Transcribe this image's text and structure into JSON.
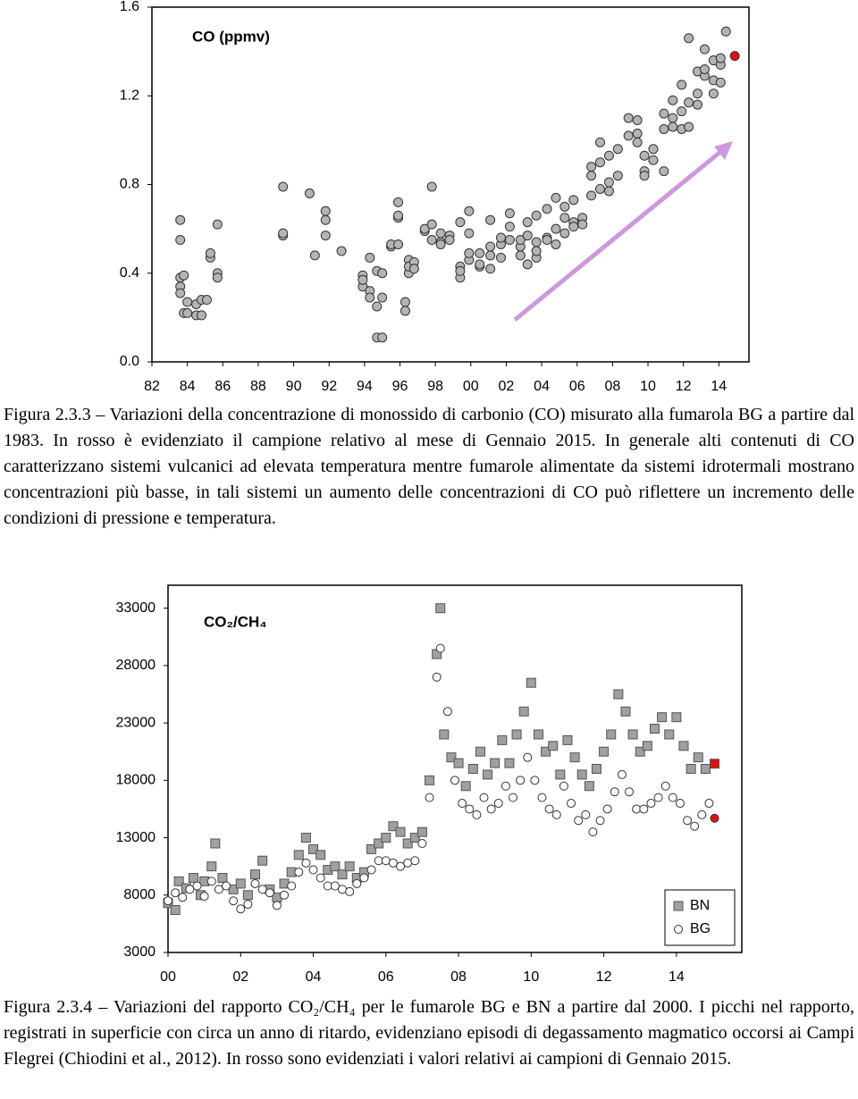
{
  "chart_data": [
    {
      "type": "scatter",
      "title": "CO (ppmv)",
      "xlim": [
        1982,
        2015.7
      ],
      "ylim": [
        0,
        1.6
      ],
      "xticks": [
        {
          "value": 1982,
          "label": "82"
        },
        {
          "value": 1984,
          "label": "84"
        },
        {
          "value": 1986,
          "label": "86"
        },
        {
          "value": 1988,
          "label": "88"
        },
        {
          "value": 1990,
          "label": "90"
        },
        {
          "value": 1992,
          "label": "92"
        },
        {
          "value": 1994,
          "label": "94"
        },
        {
          "value": 1996,
          "label": "96"
        },
        {
          "value": 1998,
          "label": "98"
        },
        {
          "value": 2000,
          "label": "00"
        },
        {
          "value": 2002,
          "label": "02"
        },
        {
          "value": 2004,
          "label": "04"
        },
        {
          "value": 2006,
          "label": "06"
        },
        {
          "value": 2008,
          "label": "08"
        },
        {
          "value": 2010,
          "label": "10"
        },
        {
          "value": 2012,
          "label": "12"
        },
        {
          "value": 2014,
          "label": "14"
        }
      ],
      "yticks": [
        {
          "value": 0,
          "label": "0.0"
        },
        0.4,
        0.8,
        1.2,
        1.6
      ],
      "series": [
        {
          "color": "#b4b4b4",
          "marker": "circle",
          "x": [
            1983.6,
            1983.6,
            1983.6,
            1983.6,
            1983.6,
            1983.8,
            1983.8,
            1984.0,
            1984.0,
            1984.5,
            1984.5,
            1984.8,
            1984.8,
            1985.1,
            1985.3,
            1985.3,
            1985.7,
            1985.7,
            1985.7,
            1989.4,
            1989.4,
            1989.4,
            1990.9,
            1991.2,
            1991.8,
            1991.8,
            1991.8,
            1992.7,
            1993.9,
            1993.9,
            1993.9,
            1993.9,
            1994.3,
            1994.3,
            1994.3,
            1994.7,
            1994.7,
            1994.7,
            1995.0,
            1995.0,
            1995.0,
            1995.5,
            1995.5,
            1995.9,
            1995.9,
            1995.9,
            1995.9,
            1996.3,
            1996.3,
            1996.5,
            1996.5,
            1996.5,
            1996.8,
            1996.8,
            1997.4,
            1997.4,
            1997.8,
            1997.8,
            1997.8,
            1998.3,
            1998.3,
            1998.3,
            1998.8,
            1998.8,
            1999.4,
            1999.4,
            1999.4,
            1999.4,
            1999.9,
            1999.9,
            1999.9,
            1999.9,
            2000.5,
            2000.5,
            2000.5,
            2001.1,
            2001.1,
            2001.1,
            2001.1,
            2001.7,
            2001.7,
            2001.7,
            2002.2,
            2002.2,
            2002.2,
            2002.8,
            2002.8,
            2002.8,
            2003.2,
            2003.2,
            2003.2,
            2003.7,
            2003.7,
            2003.7,
            2003.7,
            2004.3,
            2004.3,
            2004.3,
            2004.8,
            2004.8,
            2004.8,
            2005.3,
            2005.3,
            2005.3,
            2005.8,
            2005.8,
            2005.8,
            2006.3,
            2006.3,
            2006.8,
            2006.8,
            2006.8,
            2007.3,
            2007.3,
            2007.3,
            2007.8,
            2007.8,
            2007.8,
            2008.3,
            2008.3,
            2008.9,
            2008.9,
            2009.4,
            2009.4,
            2009.4,
            2009.8,
            2009.8,
            2009.8,
            2010.3,
            2010.3,
            2010.9,
            2010.9,
            2010.9,
            2011.4,
            2011.4,
            2011.4,
            2011.9,
            2011.9,
            2011.9,
            2012.3,
            2012.3,
            2012.3,
            2012.8,
            2012.8,
            2012.8,
            2013.2,
            2013.2,
            2013.2,
            2013.7,
            2013.7,
            2013.7,
            2014.1,
            2014.1,
            2014.1,
            2014.4
          ],
          "values": [
            0.64,
            0.55,
            0.38,
            0.34,
            0.31,
            0.39,
            0.22,
            0.22,
            0.27,
            0.26,
            0.21,
            0.21,
            0.28,
            0.28,
            0.47,
            0.49,
            0.62,
            0.4,
            0.38,
            0.79,
            0.57,
            0.58,
            0.76,
            0.48,
            0.57,
            0.64,
            0.68,
            0.5,
            0.34,
            0.39,
            0.34,
            0.37,
            0.47,
            0.32,
            0.29,
            0.41,
            0.25,
            0.11,
            0.4,
            0.11,
            0.29,
            0.52,
            0.53,
            0.53,
            0.65,
            0.72,
            0.66,
            0.27,
            0.23,
            0.46,
            0.4,
            0.43,
            0.45,
            0.42,
            0.59,
            0.6,
            0.62,
            0.79,
            0.55,
            0.54,
            0.58,
            0.53,
            0.57,
            0.55,
            0.43,
            0.38,
            0.63,
            0.41,
            0.68,
            0.58,
            0.46,
            0.49,
            0.43,
            0.49,
            0.44,
            0.48,
            0.52,
            0.42,
            0.64,
            0.53,
            0.56,
            0.47,
            0.67,
            0.61,
            0.55,
            0.52,
            0.55,
            0.48,
            0.63,
            0.57,
            0.44,
            0.66,
            0.54,
            0.47,
            0.5,
            0.69,
            0.56,
            0.55,
            0.74,
            0.6,
            0.53,
            0.7,
            0.65,
            0.58,
            0.73,
            0.63,
            0.61,
            0.65,
            0.62,
            0.88,
            0.75,
            0.84,
            0.99,
            0.78,
            0.9,
            0.93,
            0.81,
            0.77,
            0.84,
            0.96,
            1.1,
            1.02,
            1.03,
            0.99,
            1.09,
            0.86,
            0.84,
            0.93,
            0.96,
            0.91,
            1.05,
            1.12,
            0.86,
            1.18,
            1.06,
            1.1,
            1.13,
            1.05,
            1.25,
            1.46,
            1.17,
            1.06,
            1.21,
            1.31,
            1.16,
            1.41,
            1.29,
            1.32,
            1.36,
            1.27,
            1.21,
            1.34,
            1.37,
            1.26,
            1.49
          ],
          "highlight": {
            "x": 2014.9,
            "value": 1.38,
            "color": "#e01010"
          }
        }
      ]
    },
    {
      "type": "scatter",
      "title": "CO₂/CH₄",
      "xlim": [
        2000,
        2015.8
      ],
      "ylim": [
        3000,
        35000
      ],
      "legend": "lower right",
      "xticks": [
        {
          "value": 2000,
          "label": "00"
        },
        {
          "value": 2002,
          "label": "02"
        },
        {
          "value": 2004,
          "label": "04"
        },
        {
          "value": 2006,
          "label": "06"
        },
        {
          "value": 2008,
          "label": "08"
        },
        {
          "value": 2010,
          "label": "10"
        },
        {
          "value": 2012,
          "label": "12"
        },
        {
          "value": 2014,
          "label": "14"
        }
      ],
      "yticks": [
        3000,
        8000,
        13000,
        18000,
        23000,
        28000,
        33000
      ],
      "series": [
        {
          "name": "BN",
          "color": "#a0a0a0",
          "marker": "square",
          "x": [
            2000.0,
            2000.2,
            2000.3,
            2000.5,
            2000.7,
            2000.9,
            2001.0,
            2001.2,
            2001.3,
            2001.5,
            2001.8,
            2002.0,
            2002.2,
            2002.4,
            2002.6,
            2002.8,
            2003.0,
            2003.2,
            2003.4,
            2003.6,
            2003.8,
            2004.0,
            2004.2,
            2004.4,
            2004.6,
            2004.8,
            2005.0,
            2005.2,
            2005.4,
            2005.6,
            2005.8,
            2006.0,
            2006.2,
            2006.4,
            2006.6,
            2006.8,
            2007.0,
            2007.2,
            2007.4,
            2007.5,
            2007.6,
            2007.8,
            2008.0,
            2008.2,
            2008.4,
            2008.6,
            2008.8,
            2009.0,
            2009.2,
            2009.4,
            2009.6,
            2009.8,
            2010.0,
            2010.2,
            2010.4,
            2010.6,
            2010.8,
            2011.0,
            2011.2,
            2011.4,
            2011.6,
            2011.8,
            2012.0,
            2012.2,
            2012.4,
            2012.6,
            2012.8,
            2013.0,
            2013.2,
            2013.4,
            2013.6,
            2013.8,
            2014.0,
            2014.2,
            2014.4,
            2014.6,
            2014.8
          ],
          "values": [
            7300,
            6700,
            9200,
            8600,
            9500,
            8000,
            9200,
            10500,
            12500,
            9500,
            8500,
            9000,
            8000,
            9800,
            11000,
            8500,
            7800,
            9000,
            10000,
            11500,
            13000,
            12000,
            11500,
            10200,
            10500,
            9800,
            10500,
            9500,
            10000,
            12000,
            12500,
            13000,
            14000,
            13500,
            12500,
            13000,
            13500,
            18000,
            29000,
            33000,
            22000,
            20000,
            19500,
            17500,
            19000,
            20500,
            18500,
            19500,
            21500,
            19500,
            22000,
            24000,
            26500,
            22000,
            20500,
            21000,
            18500,
            21500,
            20000,
            18500,
            17500,
            19000,
            20500,
            22000,
            25500,
            24000,
            22000,
            20500,
            21000,
            22500,
            23500,
            22000,
            23500,
            21000,
            19000,
            20000,
            19000
          ],
          "highlight": {
            "x": 2015.05,
            "value": 19450,
            "color": "#e01010"
          }
        },
        {
          "name": "BG",
          "color": "#ffffff",
          "marker": "circle",
          "x": [
            2000.0,
            2000.2,
            2000.4,
            2000.6,
            2000.8,
            2001.0,
            2001.2,
            2001.4,
            2001.6,
            2001.8,
            2002.0,
            2002.2,
            2002.4,
            2002.6,
            2002.8,
            2003.0,
            2003.2,
            2003.4,
            2003.6,
            2003.8,
            2004.0,
            2004.2,
            2004.4,
            2004.6,
            2004.8,
            2005.0,
            2005.2,
            2005.4,
            2005.6,
            2005.8,
            2006.0,
            2006.2,
            2006.4,
            2006.6,
            2006.8,
            2007.0,
            2007.2,
            2007.4,
            2007.5,
            2007.7,
            2007.9,
            2008.1,
            2008.3,
            2008.5,
            2008.7,
            2008.9,
            2009.1,
            2009.3,
            2009.5,
            2009.7,
            2009.9,
            2010.1,
            2010.3,
            2010.5,
            2010.7,
            2010.9,
            2011.1,
            2011.3,
            2011.5,
            2011.7,
            2011.9,
            2012.1,
            2012.3,
            2012.5,
            2012.7,
            2012.9,
            2013.1,
            2013.3,
            2013.5,
            2013.7,
            2013.9,
            2014.1,
            2014.3,
            2014.5,
            2014.7,
            2014.9
          ],
          "values": [
            7500,
            8200,
            7800,
            8500,
            8800,
            7900,
            9200,
            8500,
            8800,
            7500,
            6800,
            7200,
            9000,
            8500,
            8200,
            7100,
            8000,
            8800,
            10000,
            10800,
            10200,
            9500,
            8800,
            8800,
            8500,
            8300,
            9000,
            9500,
            10200,
            11000,
            11000,
            10800,
            10500,
            10800,
            11000,
            12500,
            16500,
            27000,
            29500,
            24000,
            18000,
            16000,
            15500,
            15000,
            16500,
            15500,
            16000,
            17500,
            16500,
            18000,
            20000,
            18000,
            16500,
            15500,
            15000,
            17500,
            16000,
            14500,
            15000,
            13500,
            14500,
            15500,
            17000,
            18500,
            17000,
            15500,
            15500,
            16000,
            16500,
            17500,
            16500,
            16000,
            14500,
            14000,
            15000,
            16000
          ],
          "highlight": {
            "x": 2015.05,
            "value": 14700,
            "color": "#e01010"
          }
        }
      ]
    }
  ],
  "captions": [
    "Figura 2.3.3 – Variazioni della concentrazione di monossido di carbonio (CO) misurato alla fumarola BG a partire dal 1983. In rosso è evidenziato il campione relativo al mese di Gennaio 2015. In generale alti contenuti di CO caratterizzano sistemi vulcanici ad elevata temperatura mentre fumarole alimentate da sistemi idrotermali mostrano concentrazioni più basse, in tali sistemi un aumento delle concentrazioni di CO può riflettere un incremento delle condizioni di pressione e temperatura.",
    "Figura 2.3.4 – Variazioni del rapporto CO₂/CH₄ per le fumarole BG e BN a partire dal 2000. I picchi nel rapporto, registrati in superficie con circa un anno di ritardo, evidenziano episodi di degassamento magmatico occorsi ai Campi Flegrei (Chiodini et al., 2012). In rosso sono evidenziati i valori relativi ai campioni di Gennaio 2015."
  ]
}
